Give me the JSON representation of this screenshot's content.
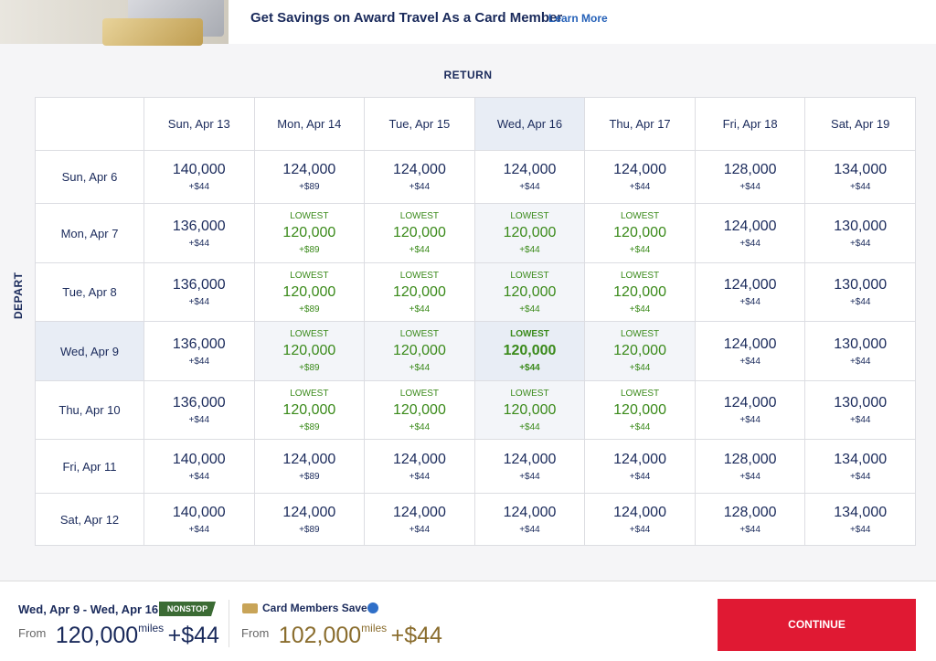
{
  "banner": {
    "title": "Get Savings on Award Travel As a Card Member",
    "link": "Learn More"
  },
  "grid": {
    "return_label": "RETURN",
    "depart_label": "DEPART",
    "columns": [
      "Sun, Apr 13",
      "Mon, Apr 14",
      "Tue, Apr 15",
      "Wed, Apr 16",
      "Thu, Apr 17",
      "Fri, Apr 18",
      "Sat, Apr 19"
    ],
    "rows": [
      {
        "label": "Sun, Apr 6",
        "cells": [
          {
            "miles": "140,000",
            "fee": "+$44"
          },
          {
            "miles": "124,000",
            "fee": "+$89"
          },
          {
            "miles": "124,000",
            "fee": "+$44"
          },
          {
            "miles": "124,000",
            "fee": "+$44"
          },
          {
            "miles": "124,000",
            "fee": "+$44"
          },
          {
            "miles": "128,000",
            "fee": "+$44"
          },
          {
            "miles": "134,000",
            "fee": "+$44"
          }
        ]
      },
      {
        "label": "Mon, Apr 7",
        "cells": [
          {
            "miles": "136,000",
            "fee": "+$44"
          },
          {
            "tag": "LOWEST",
            "miles": "120,000",
            "fee": "+$89"
          },
          {
            "tag": "LOWEST",
            "miles": "120,000",
            "fee": "+$44"
          },
          {
            "tag": "LOWEST",
            "miles": "120,000",
            "fee": "+$44"
          },
          {
            "tag": "LOWEST",
            "miles": "120,000",
            "fee": "+$44"
          },
          {
            "miles": "124,000",
            "fee": "+$44"
          },
          {
            "miles": "130,000",
            "fee": "+$44"
          }
        ]
      },
      {
        "label": "Tue, Apr 8",
        "cells": [
          {
            "miles": "136,000",
            "fee": "+$44"
          },
          {
            "tag": "LOWEST",
            "miles": "120,000",
            "fee": "+$89"
          },
          {
            "tag": "LOWEST",
            "miles": "120,000",
            "fee": "+$44"
          },
          {
            "tag": "LOWEST",
            "miles": "120,000",
            "fee": "+$44"
          },
          {
            "tag": "LOWEST",
            "miles": "120,000",
            "fee": "+$44"
          },
          {
            "miles": "124,000",
            "fee": "+$44"
          },
          {
            "miles": "130,000",
            "fee": "+$44"
          }
        ]
      },
      {
        "label": "Wed, Apr 9",
        "cells": [
          {
            "miles": "136,000",
            "fee": "+$44"
          },
          {
            "tag": "LOWEST",
            "miles": "120,000",
            "fee": "+$89"
          },
          {
            "tag": "LOWEST",
            "miles": "120,000",
            "fee": "+$44"
          },
          {
            "tag": "LOWEST",
            "miles": "120,000",
            "fee": "+$44"
          },
          {
            "tag": "LOWEST",
            "miles": "120,000",
            "fee": "+$44"
          },
          {
            "miles": "124,000",
            "fee": "+$44"
          },
          {
            "miles": "130,000",
            "fee": "+$44"
          }
        ]
      },
      {
        "label": "Thu, Apr 10",
        "cells": [
          {
            "miles": "136,000",
            "fee": "+$44"
          },
          {
            "tag": "LOWEST",
            "miles": "120,000",
            "fee": "+$89"
          },
          {
            "tag": "LOWEST",
            "miles": "120,000",
            "fee": "+$44"
          },
          {
            "tag": "LOWEST",
            "miles": "120,000",
            "fee": "+$44"
          },
          {
            "tag": "LOWEST",
            "miles": "120,000",
            "fee": "+$44"
          },
          {
            "miles": "124,000",
            "fee": "+$44"
          },
          {
            "miles": "130,000",
            "fee": "+$44"
          }
        ]
      },
      {
        "label": "Fri, Apr 11",
        "cells": [
          {
            "miles": "140,000",
            "fee": "+$44"
          },
          {
            "miles": "124,000",
            "fee": "+$89"
          },
          {
            "miles": "124,000",
            "fee": "+$44"
          },
          {
            "miles": "124,000",
            "fee": "+$44"
          },
          {
            "miles": "124,000",
            "fee": "+$44"
          },
          {
            "miles": "128,000",
            "fee": "+$44"
          },
          {
            "miles": "134,000",
            "fee": "+$44"
          }
        ]
      },
      {
        "label": "Sat, Apr 12",
        "cells": [
          {
            "miles": "140,000",
            "fee": "+$44"
          },
          {
            "miles": "124,000",
            "fee": "+$89"
          },
          {
            "miles": "124,000",
            "fee": "+$44"
          },
          {
            "miles": "124,000",
            "fee": "+$44"
          },
          {
            "miles": "124,000",
            "fee": "+$44"
          },
          {
            "miles": "128,000",
            "fee": "+$44"
          },
          {
            "miles": "134,000",
            "fee": "+$44"
          }
        ]
      }
    ]
  },
  "footer": {
    "dates": "Wed, Apr 9 - Wed, Apr 16",
    "badge": "NONSTOP",
    "from": "From",
    "miles": "120,000",
    "unit": "miles",
    "fee": "+$44",
    "card": {
      "title": "Card Members Save",
      "from": "From",
      "miles": "102,000",
      "unit": "miles",
      "fee": "+$44"
    },
    "button": "CONTINUE"
  }
}
